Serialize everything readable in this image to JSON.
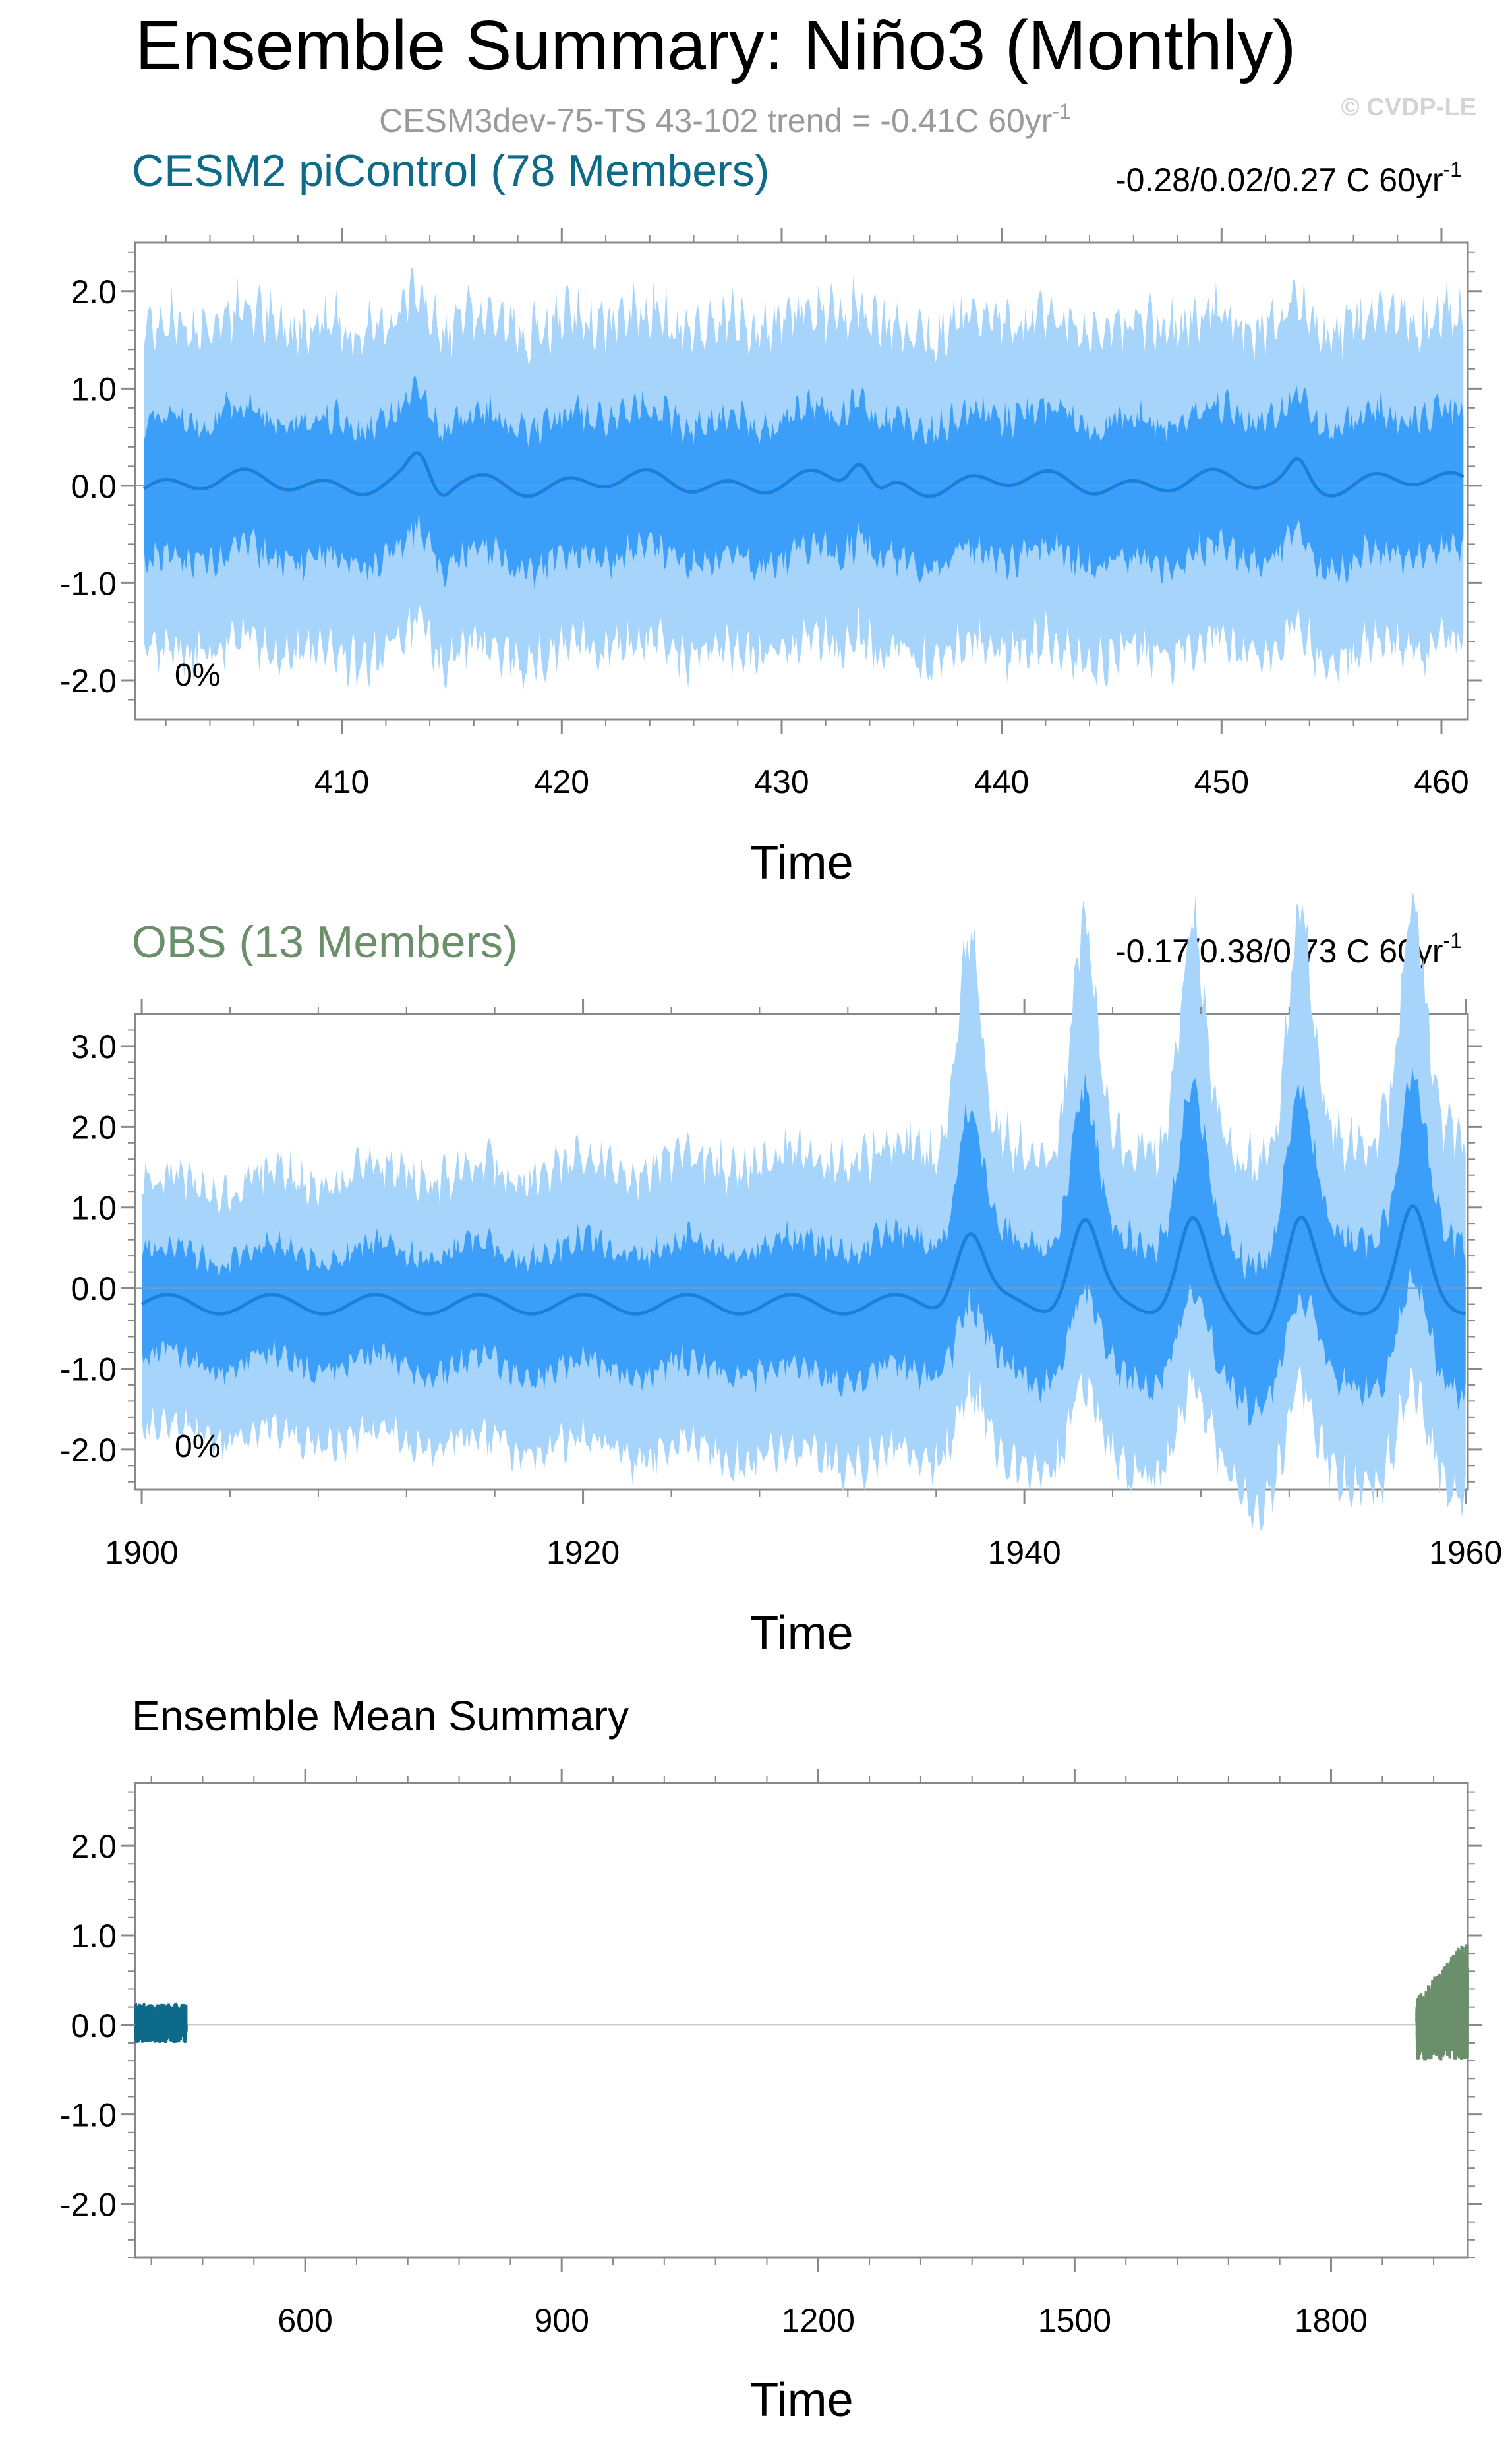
{
  "header": {
    "title": "Ensemble Summary: Niño3 (Monthly)",
    "subtitle": "CESM3dev-75-TS 43-102 trend = -0.41C 60yr",
    "subtitle_sup": "-1",
    "copyright": "© CVDP-LE"
  },
  "colors": {
    "band_outer": "#a6d4fb",
    "band_inner": "#3b9ef8",
    "mean_line": "#1a7fd8",
    "model_label": "#0d6a89",
    "obs_label": "#6a8f6a",
    "subtitle": "#9a9a9a",
    "copyright": "#d4d4d4",
    "axis": "#888888"
  },
  "chart_data": [
    {
      "id": "cesm2",
      "type": "area",
      "panel_title": "CESM2 piControl (78 Members)",
      "trend_text": "-0.28/0.02/0.27 C 60yr",
      "trend_sup": "-1",
      "percent_label": "0%",
      "xlabel": "Time",
      "xlim": [
        400.6,
        461.2
      ],
      "ylim": [
        -2.4,
        2.5
      ],
      "xticks": [
        410,
        420,
        430,
        440,
        450,
        460
      ],
      "xtick_labels": [
        "410",
        "420",
        "430",
        "440",
        "450",
        "460"
      ],
      "yticks": [
        2.0,
        1.0,
        0.0,
        -1.0,
        -2.0
      ],
      "ytick_labels": [
        "2.0",
        "1.0",
        "0.0",
        "-1.0",
        "-2.0"
      ],
      "series": [
        {
          "band": "outer",
          "x_range": [
            401,
            461
          ],
          "upper_range": [
            1.2,
            2.2
          ],
          "lower_range": [
            -1.3,
            -2.3
          ]
        },
        {
          "band": "inner",
          "x_range": [
            401,
            461
          ],
          "upper_range": [
            0.2,
            1.0
          ],
          "lower_range": [
            -0.5,
            -1.2
          ]
        },
        {
          "band": "mean",
          "x_range": [
            401,
            461
          ],
          "y_range": [
            -0.2,
            0.3
          ]
        }
      ]
    },
    {
      "id": "obs",
      "type": "area",
      "panel_title": "OBS (13 Members)",
      "trend_text": "-0.17/0.38/0.73 C 60yr",
      "trend_sup": "-1",
      "percent_label": "0%",
      "xlabel": "Time",
      "xlim": [
        1899.7,
        1960.1
      ],
      "ylim": [
        -2.5,
        3.4
      ],
      "xticks": [
        1900,
        1920,
        1940,
        1960
      ],
      "xtick_labels": [
        "1900",
        "1920",
        "1940",
        "1960"
      ],
      "yticks": [
        3.0,
        2.0,
        1.0,
        0.0,
        -1.0,
        -2.0
      ],
      "ytick_labels": [
        "3.0",
        "2.0",
        "1.0",
        "0.0",
        "-1.0",
        "-2.0"
      ],
      "series": [
        {
          "band": "outer",
          "x_range": [
            1900,
            1960
          ],
          "upper_max": 3.3,
          "lower_min": -2.2
        },
        {
          "band": "inner",
          "x_range": [
            1900,
            1960
          ],
          "upper_max": 1.8,
          "lower_min": -1.3
        },
        {
          "band": "mean",
          "x_range": [
            1900,
            1960
          ],
          "peaks": [
            [
              1937.5,
              0.7
            ],
            [
              1942.7,
              0.8
            ],
            [
              1947.6,
              0.8
            ],
            [
              1952.5,
              0.8
            ],
            [
              1957.6,
              0.9
            ]
          ]
        }
      ]
    },
    {
      "id": "ensmean",
      "type": "line",
      "panel_title": "Ensemble Mean Summary",
      "xlabel": "Time",
      "xlim": [
        401,
        1960
      ],
      "ylim": [
        -2.6,
        2.7
      ],
      "xticks": [
        600,
        900,
        1200,
        1500,
        1800
      ],
      "xtick_labels": [
        "600",
        "900",
        "1200",
        "1500",
        "1800"
      ],
      "yticks": [
        2.0,
        1.0,
        0.0,
        -1.0,
        -2.0
      ],
      "ytick_labels": [
        "2.0",
        "1.0",
        "0.0",
        "-1.0",
        "-2.0"
      ],
      "series": [
        {
          "color": "#0d6a89",
          "x_range": [
            401,
            461
          ],
          "y_range": [
            -0.25,
            0.3
          ]
        },
        {
          "color": "#6a8f6a",
          "x_range": [
            1900,
            1960
          ],
          "y_range": [
            -0.5,
            0.9
          ]
        }
      ]
    }
  ]
}
